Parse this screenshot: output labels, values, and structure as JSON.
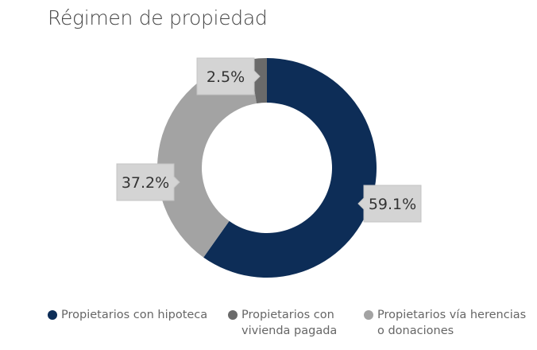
{
  "chart_data": {
    "type": "pie",
    "donut": true,
    "title": "Régimen de propiedad",
    "series": [
      {
        "name": "Propietarios con hipoteca",
        "value": 59.1,
        "label": "59.1%",
        "color": "#0d2d57"
      },
      {
        "name": "Propietarios vía herencias o donaciones",
        "value": 37.2,
        "label": "37.2%",
        "color": "#a3a3a3"
      },
      {
        "name": "Propietarios con vivienda pagada",
        "value": 2.5,
        "label": "2.5%",
        "color": "#6a6a6a"
      }
    ],
    "legend": {
      "placement": "bottom",
      "items": [
        {
          "line1": "Propietarios con hipoteca",
          "line2": "",
          "color": "#0d2d57"
        },
        {
          "line1": "Propietarios con",
          "line2": "vivienda pagada",
          "color": "#6a6a6a"
        },
        {
          "line1": "Propietarios vía herencias",
          "line2": "o donaciones",
          "color": "#a3a3a3"
        }
      ]
    }
  }
}
